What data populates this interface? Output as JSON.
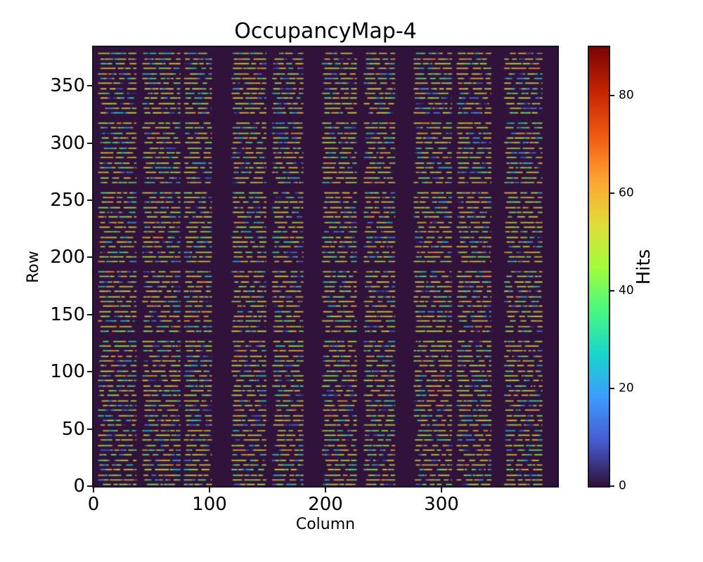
{
  "chart_data": {
    "type": "heatmap",
    "title": "OccupancyMap-4",
    "xlabel": "Column",
    "ylabel": "Row",
    "colorbar_label": "Hits",
    "colormap": "turbo",
    "n_columns": 400,
    "n_rows": 384,
    "xlim": [
      0,
      400
    ],
    "ylim": [
      0,
      384
    ],
    "vmin": 0,
    "vmax": 90,
    "x_ticks": [
      0,
      100,
      200,
      300
    ],
    "y_ticks": [
      0,
      50,
      100,
      150,
      200,
      250,
      300,
      350
    ],
    "colorbar_ticks": [
      0,
      20,
      40,
      60,
      80
    ],
    "background_value": 0,
    "grid": false,
    "legend": "colorbar-right",
    "column_bands": [
      [
        4,
        36
      ],
      [
        42,
        74
      ],
      [
        78,
        101
      ],
      [
        119,
        148
      ],
      [
        154,
        180
      ],
      [
        197,
        226
      ],
      [
        233,
        259
      ],
      [
        276,
        308
      ],
      [
        313,
        342
      ],
      [
        354,
        386
      ]
    ],
    "active_row_pattern": {
      "period": 13,
      "offsets": [
        1,
        5,
        9
      ],
      "skip_probability": 0.08
    },
    "hit_value_distribution": [
      {
        "range": [
          48,
          62
        ],
        "weight": 0.58
      },
      {
        "range": [
          35,
          47
        ],
        "weight": 0.15
      },
      {
        "range": [
          24,
          34
        ],
        "weight": 0.12
      },
      {
        "range": [
          10,
          23
        ],
        "weight": 0.11
      },
      {
        "range": [
          3,
          9
        ],
        "weight": 0.04
      }
    ],
    "dash_run_cols": [
      4,
      14
    ],
    "gap_run_cols": [
      1,
      4
    ],
    "seed": 42,
    "colors": {
      "background": "#ffffff",
      "spine": "#15151f",
      "map_zero": "#30123b",
      "colorbar_top": "#7a0403"
    }
  }
}
